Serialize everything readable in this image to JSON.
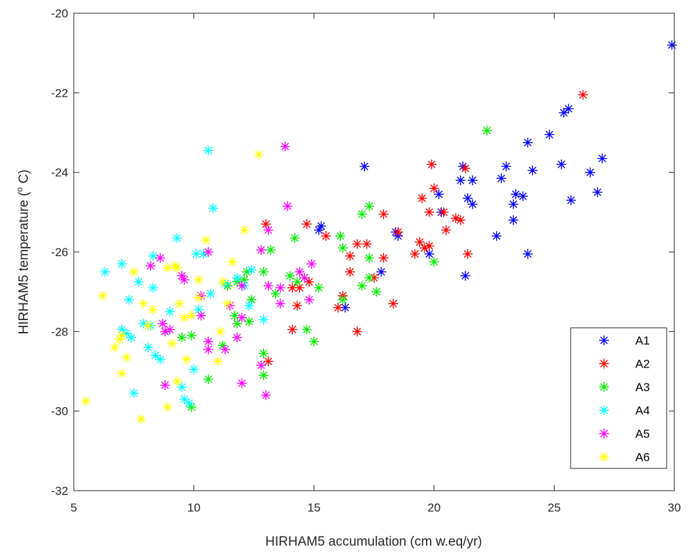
{
  "chart_data": {
    "type": "scatter",
    "xlabel": "HIRHAM5 accumulation (cm w.eq/yr)",
    "ylabel_main": "HIRHAM5 temperature (",
    "ylabel_sup": "o",
    "ylabel_end": " C)",
    "xlim": [
      5,
      30
    ],
    "ylim": [
      -32,
      -20
    ],
    "xticks": [
      5,
      10,
      15,
      20,
      25,
      30
    ],
    "yticks": [
      -32,
      -30,
      -28,
      -26,
      -24,
      -22,
      -20
    ],
    "grid": false,
    "legend_position": "bottom-right",
    "series": [
      {
        "name": "A1",
        "color": "#0000ff",
        "points": [
          [
            29.9,
            -20.8
          ],
          [
            25.6,
            -22.4
          ],
          [
            25.4,
            -22.5
          ],
          [
            24.8,
            -23.05
          ],
          [
            23.9,
            -23.25
          ],
          [
            27.0,
            -23.65
          ],
          [
            17.1,
            -23.85
          ],
          [
            21.2,
            -23.85
          ],
          [
            25.3,
            -23.8
          ],
          [
            23.0,
            -23.85
          ],
          [
            24.1,
            -23.95
          ],
          [
            26.5,
            -24.0
          ],
          [
            21.1,
            -24.2
          ],
          [
            21.6,
            -24.2
          ],
          [
            22.8,
            -24.15
          ],
          [
            23.4,
            -24.55
          ],
          [
            23.7,
            -24.6
          ],
          [
            20.2,
            -24.55
          ],
          [
            21.4,
            -24.65
          ],
          [
            21.6,
            -24.8
          ],
          [
            23.3,
            -24.8
          ],
          [
            25.7,
            -24.7
          ],
          [
            26.8,
            -24.5
          ],
          [
            20.3,
            -25.0
          ],
          [
            23.3,
            -25.2
          ],
          [
            15.3,
            -25.35
          ],
          [
            15.2,
            -25.45
          ],
          [
            18.4,
            -25.5
          ],
          [
            18.5,
            -25.6
          ],
          [
            22.6,
            -25.6
          ],
          [
            19.8,
            -26.05
          ],
          [
            23.9,
            -26.05
          ],
          [
            17.8,
            -26.5
          ],
          [
            21.3,
            -26.6
          ],
          [
            16.3,
            -27.4
          ]
        ]
      },
      {
        "name": "A2",
        "color": "#ff0000",
        "points": [
          [
            26.2,
            -22.05
          ],
          [
            19.9,
            -23.8
          ],
          [
            21.3,
            -23.9
          ],
          [
            20.0,
            -24.4
          ],
          [
            19.5,
            -24.65
          ],
          [
            19.8,
            -25.0
          ],
          [
            20.4,
            -25.0
          ],
          [
            17.9,
            -25.05
          ],
          [
            20.9,
            -25.15
          ],
          [
            21.1,
            -25.2
          ],
          [
            13.0,
            -25.3
          ],
          [
            14.7,
            -25.3
          ],
          [
            20.5,
            -25.45
          ],
          [
            18.5,
            -25.5
          ],
          [
            15.5,
            -25.6
          ],
          [
            19.4,
            -25.75
          ],
          [
            16.8,
            -25.8
          ],
          [
            17.2,
            -25.8
          ],
          [
            19.8,
            -25.85
          ],
          [
            19.6,
            -25.9
          ],
          [
            19.2,
            -26.05
          ],
          [
            16.5,
            -26.1
          ],
          [
            21.4,
            -26.05
          ],
          [
            17.9,
            -26.15
          ],
          [
            16.5,
            -26.5
          ],
          [
            17.5,
            -26.65
          ],
          [
            14.8,
            -26.75
          ],
          [
            11.4,
            -26.85
          ],
          [
            14.1,
            -26.9
          ],
          [
            14.4,
            -26.9
          ],
          [
            16.2,
            -27.1
          ],
          [
            14.3,
            -27.35
          ],
          [
            18.3,
            -27.3
          ],
          [
            16.0,
            -27.4
          ],
          [
            14.1,
            -27.95
          ],
          [
            16.8,
            -28.0
          ],
          [
            13.1,
            -28.75
          ]
        ]
      },
      {
        "name": "A3",
        "color": "#00ee00",
        "points": [
          [
            22.2,
            -22.95
          ],
          [
            17.3,
            -24.85
          ],
          [
            17.0,
            -25.05
          ],
          [
            14.2,
            -25.65
          ],
          [
            16.1,
            -25.6
          ],
          [
            16.2,
            -25.9
          ],
          [
            13.2,
            -25.95
          ],
          [
            17.3,
            -26.15
          ],
          [
            20.0,
            -26.25
          ],
          [
            12.2,
            -26.5
          ],
          [
            12.9,
            -26.5
          ],
          [
            14.0,
            -26.6
          ],
          [
            11.8,
            -26.75
          ],
          [
            12.1,
            -26.7
          ],
          [
            14.3,
            -26.75
          ],
          [
            17.3,
            -26.65
          ],
          [
            17.0,
            -26.85
          ],
          [
            11.4,
            -26.85
          ],
          [
            15.2,
            -26.9
          ],
          [
            17.6,
            -27.0
          ],
          [
            13.4,
            -27.05
          ],
          [
            12.4,
            -27.2
          ],
          [
            16.2,
            -27.2
          ],
          [
            11.8,
            -27.8
          ],
          [
            11.7,
            -27.6
          ],
          [
            12.3,
            -27.75
          ],
          [
            14.7,
            -27.95
          ],
          [
            9.5,
            -28.15
          ],
          [
            9.9,
            -28.1
          ],
          [
            15.0,
            -28.25
          ],
          [
            11.2,
            -28.35
          ],
          [
            12.9,
            -28.55
          ],
          [
            12.9,
            -29.1
          ],
          [
            10.6,
            -29.2
          ],
          [
            9.9,
            -29.9
          ]
        ]
      },
      {
        "name": "A4",
        "color": "#00ffff",
        "points": [
          [
            10.6,
            -23.45
          ],
          [
            10.8,
            -24.9
          ],
          [
            9.3,
            -25.65
          ],
          [
            10.1,
            -26.05
          ],
          [
            10.4,
            -26.05
          ],
          [
            8.3,
            -26.1
          ],
          [
            6.3,
            -26.5
          ],
          [
            7.0,
            -26.3
          ],
          [
            12.4,
            -26.45
          ],
          [
            7.7,
            -26.75
          ],
          [
            11.3,
            -26.8
          ],
          [
            12.1,
            -26.85
          ],
          [
            11.8,
            -26.65
          ],
          [
            8.3,
            -26.9
          ],
          [
            10.7,
            -27.05
          ],
          [
            7.3,
            -27.2
          ],
          [
            12.3,
            -27.35
          ],
          [
            10.2,
            -27.45
          ],
          [
            9.0,
            -27.5
          ],
          [
            12.9,
            -27.7
          ],
          [
            7.9,
            -27.8
          ],
          [
            8.2,
            -27.85
          ],
          [
            7.0,
            -27.95
          ],
          [
            7.2,
            -28.05
          ],
          [
            7.4,
            -28.15
          ],
          [
            8.1,
            -28.4
          ],
          [
            8.4,
            -28.6
          ],
          [
            8.6,
            -28.7
          ],
          [
            10.0,
            -28.95
          ],
          [
            9.5,
            -29.4
          ],
          [
            9.6,
            -29.7
          ],
          [
            7.5,
            -29.55
          ],
          [
            9.8,
            -29.8
          ]
        ]
      },
      {
        "name": "A5",
        "color": "#ff00ff",
        "points": [
          [
            13.8,
            -23.35
          ],
          [
            13.9,
            -24.85
          ],
          [
            13.1,
            -25.45
          ],
          [
            10.6,
            -26.0
          ],
          [
            12.8,
            -25.95
          ],
          [
            8.6,
            -26.15
          ],
          [
            8.2,
            -26.35
          ],
          [
            14.9,
            -26.3
          ],
          [
            9.5,
            -26.6
          ],
          [
            9.6,
            -26.7
          ],
          [
            14.4,
            -26.5
          ],
          [
            14.6,
            -26.65
          ],
          [
            13.1,
            -26.85
          ],
          [
            13.6,
            -26.9
          ],
          [
            12.0,
            -26.85
          ],
          [
            10.3,
            -27.1
          ],
          [
            14.8,
            -27.2
          ],
          [
            10.3,
            -27.6
          ],
          [
            11.5,
            -27.35
          ],
          [
            13.6,
            -27.3
          ],
          [
            12.0,
            -27.65
          ],
          [
            8.7,
            -27.8
          ],
          [
            8.8,
            -28.0
          ],
          [
            9.0,
            -27.95
          ],
          [
            11.8,
            -28.15
          ],
          [
            10.6,
            -28.25
          ],
          [
            10.6,
            -28.45
          ],
          [
            11.3,
            -28.45
          ],
          [
            12.8,
            -28.85
          ],
          [
            8.8,
            -29.35
          ],
          [
            12.0,
            -29.3
          ],
          [
            13.0,
            -29.6
          ]
        ]
      },
      {
        "name": "A6",
        "color": "#ffff00",
        "points": [
          [
            12.7,
            -23.55
          ],
          [
            12.1,
            -25.45
          ],
          [
            10.5,
            -25.7
          ],
          [
            11.6,
            -26.25
          ],
          [
            8.9,
            -26.4
          ],
          [
            9.2,
            -26.35
          ],
          [
            9.3,
            -26.4
          ],
          [
            7.5,
            -26.5
          ],
          [
            10.2,
            -26.7
          ],
          [
            11.2,
            -26.75
          ],
          [
            6.2,
            -27.1
          ],
          [
            10.2,
            -27.15
          ],
          [
            9.4,
            -27.3
          ],
          [
            7.9,
            -27.3
          ],
          [
            11.4,
            -27.3
          ],
          [
            8.3,
            -27.45
          ],
          [
            9.9,
            -27.6
          ],
          [
            9.6,
            -27.65
          ],
          [
            11.1,
            -28.0
          ],
          [
            8.1,
            -27.85
          ],
          [
            7.0,
            -28.1
          ],
          [
            6.9,
            -28.2
          ],
          [
            6.7,
            -28.4
          ],
          [
            9.1,
            -28.3
          ],
          [
            11.0,
            -28.75
          ],
          [
            7.2,
            -28.65
          ],
          [
            9.7,
            -28.7
          ],
          [
            7.0,
            -29.05
          ],
          [
            9.3,
            -29.25
          ],
          [
            8.9,
            -29.9
          ],
          [
            7.8,
            -30.2
          ],
          [
            5.5,
            -29.75
          ]
        ]
      }
    ]
  }
}
